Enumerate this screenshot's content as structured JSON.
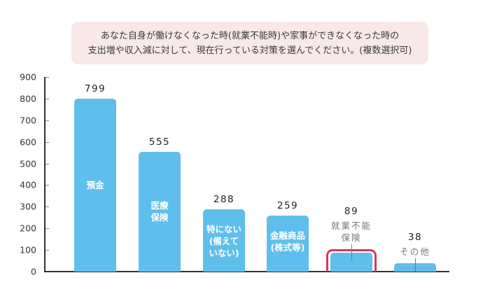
{
  "question": {
    "line1": "あなた自身が働けなくなった時(就業不能時)や家事ができなくなった時の",
    "line2": "支出増や収入減に対して、現在行っている対策を選んでください。(複数選択可)"
  },
  "axis": {
    "y_ticks": [
      "0",
      "100",
      "200",
      "300",
      "400",
      "500",
      "600",
      "700",
      "800",
      "900"
    ]
  },
  "bars": [
    {
      "value_label": "799",
      "label_lines": [
        "預金"
      ],
      "label_inside": true
    },
    {
      "value_label": "555",
      "label_lines": [
        "医療",
        "保険"
      ],
      "label_inside": true
    },
    {
      "value_label": "288",
      "label_lines": [
        "特にない",
        "(備えて",
        "いない)"
      ],
      "label_inside": true
    },
    {
      "value_label": "259",
      "label_lines": [
        "金融商品",
        "(株式等)"
      ],
      "label_inside": true
    },
    {
      "value_label": "89",
      "label_lines": [
        "就業不能",
        "保険"
      ],
      "label_inside": false,
      "highlighted": true
    },
    {
      "value_label": "38",
      "label_lines": [
        "その他"
      ],
      "label_inside": false
    }
  ],
  "colors": {
    "bar": "#5fbfec",
    "highlight": "#d6385a",
    "question_bg": "#f8e8e7"
  },
  "chart_data": {
    "type": "bar",
    "title": "あなた自身が働けなくなった時(就業不能時)や家事ができなくなった時の支出増や収入減に対して、現在行っている対策を選んでください。(複数選択可)",
    "categories": [
      "預金",
      "医療保険",
      "特にない(備えていない)",
      "金融商品(株式等)",
      "就業不能保険",
      "その他"
    ],
    "values": [
      799,
      555,
      288,
      259,
      89,
      38
    ],
    "xlabel": "",
    "ylabel": "",
    "ylim": [
      0,
      900
    ],
    "yticks": [
      0,
      100,
      200,
      300,
      400,
      500,
      600,
      700,
      800,
      900
    ],
    "grid": false,
    "legend": null,
    "annotations": [
      "就業不能保険 bar highlighted with red outline"
    ]
  }
}
